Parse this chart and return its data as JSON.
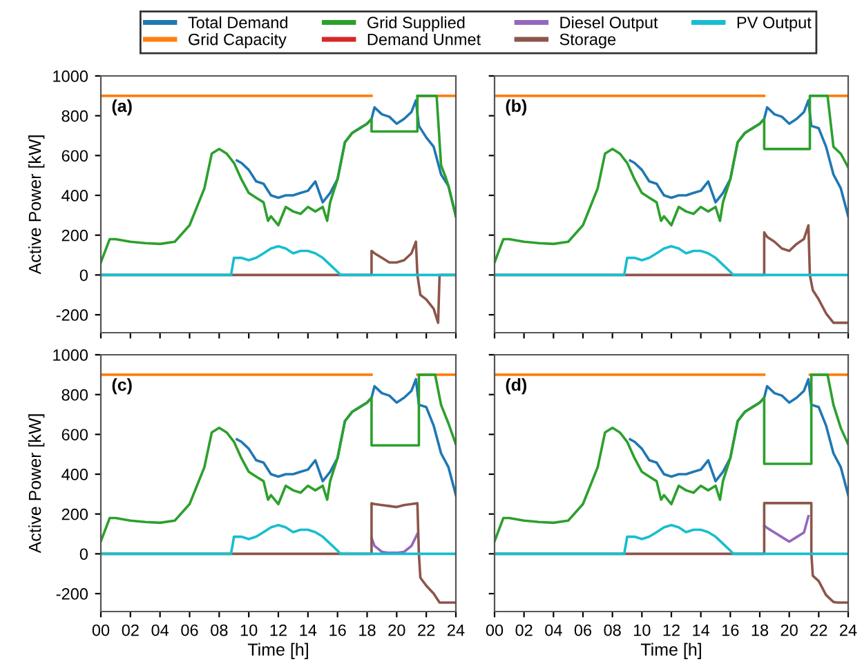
{
  "chart_data": [
    {
      "type": "line",
      "ylabel": "Active Power [kW]",
      "annotations": [
        "(a)"
      ],
      "legend": "top",
      "tick_labels": "y",
      "grid": false,
      "xlim": [
        0,
        24
      ],
      "xticks": [
        {
          "value": 0,
          "label": null
        },
        {
          "value": 2,
          "label": null
        },
        {
          "value": 4,
          "label": null
        },
        {
          "value": 6,
          "label": null
        },
        {
          "value": 8,
          "label": null
        },
        {
          "value": 10,
          "label": null
        },
        {
          "value": 12,
          "label": null
        },
        {
          "value": 14,
          "label": null
        },
        {
          "value": 16,
          "label": null
        },
        {
          "value": 18,
          "label": null
        },
        {
          "value": 20,
          "label": null
        },
        {
          "value": 22,
          "label": null
        },
        {
          "value": 24,
          "label": null
        }
      ],
      "ylim": [
        -290,
        1000
      ],
      "yticks": [
        -200,
        0,
        200,
        400,
        600,
        800,
        1000
      ],
      "series": [
        {
          "name": "Total Demand",
          "color": "#1f77b4",
          "x": [
            9.2,
            9.5,
            10,
            10.5,
            11,
            11.5,
            12,
            12.5,
            13,
            13.5,
            14,
            14.5,
            15,
            15.5,
            16,
            16.5,
            17,
            17.5,
            18,
            18.3,
            18.5,
            19,
            19.5,
            20,
            20.5,
            21,
            21.3,
            21.5,
            22,
            22.5,
            23,
            23.5,
            24
          ],
          "values": [
            575,
            563,
            528,
            470,
            458,
            400,
            388,
            400,
            400,
            412,
            423,
            470,
            365,
            412,
            481,
            667,
            714,
            737,
            760,
            784,
            842,
            807,
            795,
            760,
            784,
            819,
            877,
            749,
            691,
            644,
            505,
            447,
            295
          ]
        },
        {
          "name": "Grid Capacity",
          "color": "#ff7f0e",
          "x": [
            0,
            18.3,
            18.31,
            21.4,
            24
          ],
          "values": [
            900,
            900,
            null,
            900,
            900
          ]
        },
        {
          "name": "Grid Supplied",
          "color": "#2ca02c",
          "x": [
            0,
            0.6,
            1,
            2,
            3,
            4,
            5,
            6,
            7,
            7.5,
            8,
            8.5,
            9,
            9.5,
            10,
            10.5,
            11,
            11.3,
            11.5,
            12,
            12.5,
            13,
            13.5,
            14,
            14.5,
            15,
            15.3,
            15.5,
            16,
            16.5,
            17,
            17.5,
            18,
            18.3,
            18.3,
            21.4,
            21.4,
            22.7,
            23,
            23.3,
            23.5,
            24
          ],
          "values": [
            63,
            180,
            180,
            167,
            160,
            156,
            167,
            250,
            435,
            610,
            633,
            610,
            563,
            481,
            412,
            388,
            365,
            272,
            295,
            250,
            342,
            319,
            307,
            342,
            319,
            342,
            272,
            365,
            481,
            667,
            714,
            737,
            760,
            784,
            721,
            721,
            900,
            900,
            551,
            493,
            447,
            295
          ]
        },
        {
          "name": "Demand Unmet",
          "color": "#d62728"
        },
        {
          "name": "Diesel Output",
          "color": "#9467bd"
        },
        {
          "name": "Storage",
          "color": "#8c564b",
          "x": [
            0,
            18.3,
            18.3,
            18.5,
            19,
            19.5,
            20,
            20.5,
            21,
            21.3,
            21.4,
            21.6,
            22,
            22.5,
            22.8,
            22.9,
            24
          ],
          "values": [
            0,
            0,
            121,
            109,
            86,
            63,
            63,
            74,
            109,
            167,
            0,
            -100,
            -123,
            -170,
            -240,
            0,
            0
          ]
        },
        {
          "name": "PV Output",
          "color": "#17becf",
          "x": [
            0,
            8.8,
            9,
            9.5,
            10,
            10.5,
            11,
            11.5,
            12,
            12.5,
            13,
            13.5,
            14,
            14.5,
            15,
            15.5,
            16,
            16.2,
            24
          ],
          "values": [
            0,
            0,
            86,
            86,
            74,
            86,
            109,
            133,
            144,
            133,
            109,
            121,
            121,
            109,
            86,
            51,
            16,
            0,
            0
          ]
        }
      ]
    },
    {
      "type": "line",
      "annotations": [
        "(b)"
      ],
      "tick_labels": false,
      "grid": false,
      "xlim": [
        0,
        24
      ],
      "xticks": [
        {
          "value": 0,
          "label": null
        },
        {
          "value": 2,
          "label": null
        },
        {
          "value": 4,
          "label": null
        },
        {
          "value": 6,
          "label": null
        },
        {
          "value": 8,
          "label": null
        },
        {
          "value": 10,
          "label": null
        },
        {
          "value": 12,
          "label": null
        },
        {
          "value": 14,
          "label": null
        },
        {
          "value": 16,
          "label": null
        },
        {
          "value": 18,
          "label": null
        },
        {
          "value": 20,
          "label": null
        },
        {
          "value": 22,
          "label": null
        },
        {
          "value": 24,
          "label": null
        }
      ],
      "ylim": [
        -290,
        1000
      ],
      "yticks": [
        -200,
        0,
        200,
        400,
        600,
        800,
        1000
      ],
      "series": [
        {
          "color": "#1f77b4",
          "x": [
            9.2,
            9.5,
            10,
            10.5,
            11,
            11.5,
            12,
            12.5,
            13,
            13.5,
            14,
            14.5,
            15,
            15.5,
            16,
            16.5,
            17,
            17.5,
            18,
            18.3,
            18.5,
            19,
            19.5,
            20,
            20.5,
            21,
            21.3,
            21.5,
            22,
            22.5,
            23,
            23.5,
            24
          ],
          "values": [
            575,
            563,
            528,
            470,
            458,
            400,
            388,
            400,
            400,
            412,
            423,
            470,
            365,
            412,
            481,
            667,
            714,
            737,
            760,
            784,
            842,
            807,
            795,
            760,
            784,
            819,
            877,
            749,
            737,
            644,
            505,
            435,
            295
          ]
        },
        {
          "color": "#ff7f0e",
          "x": [
            0,
            18.3,
            18.31,
            22.7,
            24
          ],
          "values": [
            900,
            900,
            null,
            900,
            900
          ]
        },
        {
          "color": "#2ca02c",
          "x": [
            0,
            0.6,
            1,
            2,
            3,
            4,
            5,
            6,
            7,
            7.5,
            8,
            8.5,
            9,
            9.5,
            10,
            10.5,
            11,
            11.3,
            11.5,
            12,
            12.5,
            13,
            13.5,
            14,
            14.5,
            15,
            15.3,
            15.5,
            16,
            16.5,
            17,
            17.5,
            18,
            18.3,
            18.3,
            21.4,
            21.4,
            22.6,
            23,
            23.5,
            24
          ],
          "values": [
            63,
            180,
            180,
            167,
            160,
            156,
            167,
            250,
            435,
            610,
            633,
            610,
            563,
            481,
            412,
            388,
            365,
            272,
            295,
            250,
            342,
            319,
            307,
            342,
            319,
            342,
            272,
            365,
            481,
            667,
            714,
            737,
            760,
            784,
            633,
            633,
            900,
            900,
            644,
            609,
            540
          ]
        },
        {
          "color": "#8c564b",
          "x": [
            0,
            18.3,
            18.3,
            18.5,
            19,
            19.5,
            20,
            20.5,
            21,
            21.3,
            21.4,
            21.6,
            22,
            22.5,
            23,
            24
          ],
          "values": [
            0,
            0,
            214,
            191,
            167,
            133,
            121,
            156,
            181,
            249,
            0,
            -77,
            -123,
            -193,
            -240,
            -240
          ]
        },
        {
          "color": "#17becf",
          "x": [
            0,
            8.8,
            9,
            9.5,
            10,
            10.5,
            11,
            11.5,
            12,
            12.5,
            13,
            13.5,
            14,
            14.5,
            15,
            15.5,
            16,
            16.2,
            24
          ],
          "values": [
            0,
            0,
            86,
            86,
            74,
            86,
            109,
            133,
            144,
            133,
            109,
            121,
            121,
            109,
            86,
            51,
            16,
            0,
            0
          ]
        }
      ]
    },
    {
      "type": "line",
      "xlabel": "Time [h]",
      "ylabel": "Active Power [kW]",
      "annotations": [
        "(c)"
      ],
      "grid": false,
      "xlim": [
        0,
        24
      ],
      "xticks": [
        {
          "value": 0,
          "label": "00"
        },
        {
          "value": 2,
          "label": "02"
        },
        {
          "value": 4,
          "label": "04"
        },
        {
          "value": 6,
          "label": "06"
        },
        {
          "value": 8,
          "label": "08"
        },
        10,
        12,
        14,
        16,
        18,
        20,
        22,
        24
      ],
      "ylim": [
        -290,
        1000
      ],
      "yticks": [
        -200,
        0,
        200,
        400,
        600,
        800,
        1000
      ],
      "series": [
        {
          "color": "#1f77b4",
          "x": [
            9.2,
            9.5,
            10,
            10.5,
            11,
            11.5,
            12,
            12.5,
            13,
            13.5,
            14,
            14.5,
            15,
            15.5,
            16,
            16.5,
            17,
            17.5,
            18,
            18.3,
            18.5,
            19,
            19.5,
            20,
            20.5,
            21,
            21.3,
            21.5,
            22,
            22.5,
            23,
            23.5,
            24
          ],
          "values": [
            575,
            563,
            528,
            470,
            458,
            400,
            388,
            400,
            400,
            412,
            423,
            470,
            365,
            412,
            481,
            667,
            714,
            737,
            760,
            784,
            842,
            807,
            795,
            760,
            784,
            819,
            877,
            749,
            737,
            644,
            505,
            435,
            295
          ]
        },
        {
          "color": "#ff7f0e",
          "x": [
            0,
            18.3,
            18.31,
            21.4,
            24
          ],
          "values": [
            900,
            900,
            null,
            900,
            900
          ]
        },
        {
          "color": "#2ca02c",
          "x": [
            0,
            0.6,
            1,
            2,
            3,
            4,
            5,
            6,
            7,
            7.5,
            8,
            8.5,
            9,
            9.5,
            10,
            10.5,
            11,
            11.3,
            11.5,
            12,
            12.5,
            13,
            13.5,
            14,
            14.5,
            15,
            15.3,
            15.5,
            16,
            16.5,
            17,
            17.5,
            18,
            18.3,
            18.3,
            21.5,
            21.5,
            22.6,
            23,
            23.5,
            24
          ],
          "values": [
            63,
            180,
            180,
            167,
            160,
            156,
            167,
            250,
            435,
            610,
            633,
            610,
            563,
            481,
            412,
            388,
            365,
            272,
            295,
            250,
            342,
            319,
            307,
            342,
            319,
            342,
            272,
            365,
            481,
            667,
            714,
            737,
            760,
            784,
            545,
            545,
            900,
            900,
            748,
            655,
            550
          ]
        },
        {
          "color": "#9467bd",
          "x": [
            18.3,
            18.5,
            19,
            19.5,
            20,
            20.5,
            21,
            21.4
          ],
          "values": [
            80,
            40,
            10,
            5,
            5,
            10,
            40,
            100
          ]
        },
        {
          "color": "#8c564b",
          "x": [
            0,
            18.3,
            18.3,
            18.5,
            19,
            19.5,
            20,
            20.5,
            21,
            21.4,
            21.5,
            21.6,
            22,
            22.5,
            22.9,
            24
          ],
          "values": [
            0,
            0,
            254,
            250,
            245,
            240,
            235,
            245,
            250,
            254,
            0,
            -120,
            -160,
            -200,
            -245,
            -245
          ]
        },
        {
          "color": "#17becf",
          "x": [
            0,
            8.8,
            9,
            9.5,
            10,
            10.5,
            11,
            11.5,
            12,
            12.5,
            13,
            13.5,
            14,
            14.5,
            15,
            15.5,
            16,
            16.2,
            24
          ],
          "values": [
            0,
            0,
            86,
            86,
            74,
            86,
            109,
            133,
            144,
            133,
            109,
            121,
            121,
            109,
            86,
            51,
            16,
            0,
            0
          ]
        }
      ]
    },
    {
      "type": "line",
      "xlabel": "Time [h]",
      "annotations": [
        "(d)"
      ],
      "tick_labels": "x",
      "grid": false,
      "xlim": [
        0,
        24
      ],
      "xticks": [
        {
          "value": 0,
          "label": "00"
        },
        {
          "value": 2,
          "label": "02"
        },
        {
          "value": 4,
          "label": "04"
        },
        {
          "value": 6,
          "label": "06"
        },
        {
          "value": 8,
          "label": "08"
        },
        10,
        12,
        14,
        16,
        18,
        20,
        22,
        24
      ],
      "ylim": [
        -290,
        1000
      ],
      "yticks": [
        -200,
        0,
        200,
        400,
        600,
        800,
        1000
      ],
      "series": [
        {
          "color": "#1f77b4",
          "x": [
            9.2,
            9.5,
            10,
            10.5,
            11,
            11.5,
            12,
            12.5,
            13,
            13.5,
            14,
            14.5,
            15,
            15.5,
            16,
            16.5,
            17,
            17.5,
            18,
            18.3,
            18.5,
            19,
            19.5,
            20,
            20.5,
            21,
            21.3,
            21.5,
            22,
            22.5,
            23,
            23.5,
            24
          ],
          "values": [
            575,
            563,
            528,
            470,
            458,
            400,
            388,
            400,
            400,
            412,
            423,
            470,
            365,
            412,
            481,
            667,
            714,
            737,
            760,
            784,
            842,
            807,
            795,
            760,
            784,
            819,
            877,
            749,
            737,
            644,
            505,
            435,
            295
          ]
        },
        {
          "color": "#ff7f0e",
          "x": [
            0,
            18.3,
            18.31,
            21.4,
            24
          ],
          "values": [
            900,
            900,
            null,
            900,
            900
          ]
        },
        {
          "color": "#2ca02c",
          "x": [
            0,
            0.6,
            1,
            2,
            3,
            4,
            5,
            6,
            7,
            7.5,
            8,
            8.5,
            9,
            9.5,
            10,
            10.5,
            11,
            11.3,
            11.5,
            12,
            12.5,
            13,
            13.5,
            14,
            14.5,
            15,
            15.3,
            15.5,
            16,
            16.5,
            17,
            17.5,
            18,
            18.3,
            18.3,
            21.5,
            21.5,
            22.6,
            23,
            23.5,
            24
          ],
          "values": [
            63,
            180,
            180,
            167,
            160,
            156,
            167,
            250,
            435,
            610,
            633,
            610,
            563,
            481,
            412,
            388,
            365,
            272,
            295,
            250,
            342,
            319,
            307,
            342,
            319,
            342,
            272,
            365,
            481,
            667,
            714,
            737,
            760,
            784,
            452,
            452,
            900,
            900,
            748,
            632,
            550
          ]
        },
        {
          "color": "#9467bd",
          "x": [
            18.3,
            18.5,
            19,
            19.5,
            20,
            20.5,
            21,
            21.3
          ],
          "values": [
            142,
            130,
            107,
            84,
            61,
            84,
            107,
            189
          ]
        },
        {
          "color": "#8c564b",
          "x": [
            0,
            18.3,
            18.3,
            21.5,
            21.5,
            21.6,
            22,
            22.5,
            23,
            23.3,
            24
          ],
          "values": [
            0,
            0,
            255,
            255,
            0,
            -110,
            -137,
            -207,
            -242,
            -245,
            -245
          ]
        },
        {
          "color": "#17becf",
          "x": [
            0,
            8.8,
            9,
            9.5,
            10,
            10.5,
            11,
            11.5,
            12,
            12.5,
            13,
            13.5,
            14,
            14.5,
            15,
            15.5,
            16,
            16.2,
            24
          ],
          "values": [
            0,
            0,
            86,
            86,
            74,
            86,
            109,
            133,
            144,
            133,
            109,
            121,
            121,
            109,
            86,
            51,
            16,
            0,
            0
          ]
        }
      ]
    }
  ]
}
